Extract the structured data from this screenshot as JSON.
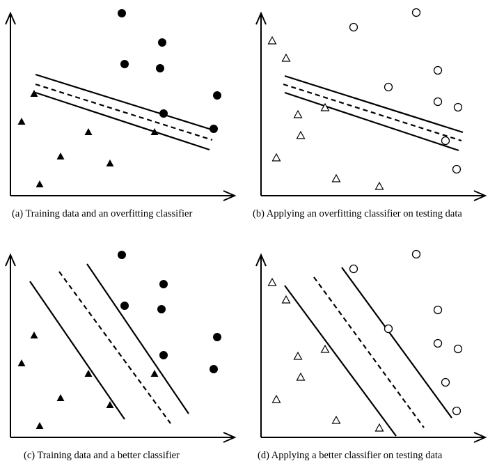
{
  "figure": {
    "panels": [
      {
        "id": "a",
        "caption": "(a) Training data and an overfitting classifier",
        "filled": true,
        "circles": [
          [
            160,
            4
          ],
          [
            218,
            46
          ],
          [
            164,
            77
          ],
          [
            215,
            83
          ],
          [
            297,
            122
          ],
          [
            220,
            148
          ],
          [
            292,
            170
          ]
        ],
        "triangles": [
          [
            34,
            120
          ],
          [
            16,
            160
          ],
          [
            112,
            175
          ],
          [
            207,
            175
          ],
          [
            72,
            210
          ],
          [
            143,
            220
          ],
          [
            42,
            250
          ]
        ],
        "solid_lines": [
          [
            [
              36,
              92
            ],
            [
              292,
              172
            ]
          ],
          [
            [
              36,
              118
            ],
            [
              286,
              200
            ]
          ]
        ],
        "dashed_lines": [
          [
            [
              36,
              106
            ],
            [
              290,
              186
            ]
          ]
        ]
      },
      {
        "id": "b",
        "caption": "(b) Applying an overfitting classifier on testing data",
        "filled": false,
        "circles": [
          [
            223,
            3
          ],
          [
            133,
            24
          ],
          [
            254,
            86
          ],
          [
            183,
            110
          ],
          [
            254,
            131
          ],
          [
            283,
            139
          ],
          [
            265,
            187
          ],
          [
            281,
            228
          ]
        ],
        "triangles": [
          [
            16,
            44
          ],
          [
            36,
            69
          ],
          [
            53,
            150
          ],
          [
            92,
            140
          ],
          [
            57,
            180
          ],
          [
            22,
            212
          ],
          [
            108,
            242
          ],
          [
            170,
            253
          ]
        ],
        "solid_lines": [
          [
            [
              34,
              94
            ],
            [
              290,
              175
            ]
          ],
          [
            [
              34,
              118
            ],
            [
              284,
              201
            ]
          ]
        ],
        "dashed_lines": [
          [
            [
              32,
              106
            ],
            [
              288,
              187
            ]
          ]
        ]
      },
      {
        "id": "c",
        "caption": "(c) Training data and a better classifier",
        "filled": true,
        "circles": [
          [
            160,
            4
          ],
          [
            164,
            77
          ],
          [
            220,
            46
          ],
          [
            217,
            82
          ],
          [
            297,
            122
          ],
          [
            220,
            148
          ],
          [
            292,
            168
          ]
        ],
        "triangles": [
          [
            34,
            120
          ],
          [
            16,
            160
          ],
          [
            112,
            175
          ],
          [
            207,
            175
          ],
          [
            72,
            210
          ],
          [
            143,
            220
          ],
          [
            42,
            250
          ]
        ],
        "solid_lines": [
          [
            [
              28,
              42
            ],
            [
              164,
              240
            ]
          ],
          [
            [
              110,
              17
            ],
            [
              256,
              232
            ]
          ]
        ],
        "dashed_lines": [
          [
            [
              70,
              28
            ],
            [
              230,
              246
            ]
          ]
        ]
      },
      {
        "id": "d",
        "caption": "(d) Applying a better classifier on testing data",
        "filled": false,
        "circles": [
          [
            223,
            3
          ],
          [
            133,
            24
          ],
          [
            254,
            83
          ],
          [
            183,
            110
          ],
          [
            254,
            131
          ],
          [
            283,
            139
          ],
          [
            265,
            187
          ],
          [
            281,
            228
          ]
        ],
        "triangles": [
          [
            16,
            44
          ],
          [
            36,
            69
          ],
          [
            53,
            150
          ],
          [
            92,
            140
          ],
          [
            57,
            180
          ],
          [
            22,
            212
          ],
          [
            108,
            242
          ],
          [
            170,
            253
          ]
        ],
        "solid_lines": [
          [
            [
              34,
              48
            ],
            [
              194,
              264
            ]
          ],
          [
            [
              116,
              22
            ],
            [
              274,
              238
            ]
          ]
        ],
        "dashed_lines": [
          [
            [
              76,
              36
            ],
            [
              234,
              252
            ]
          ]
        ]
      }
    ]
  }
}
